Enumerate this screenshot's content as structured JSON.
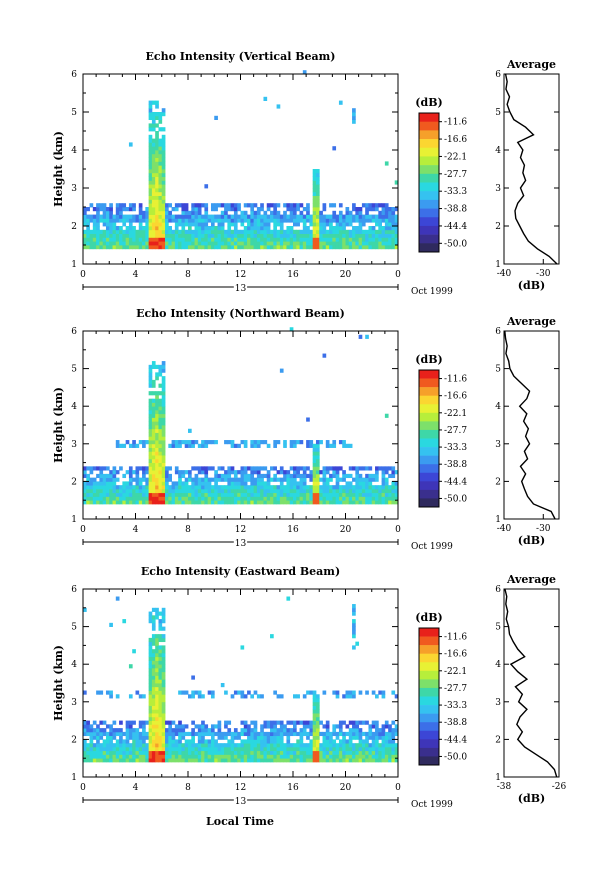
{
  "page": {
    "date_label": "Oct 1999",
    "day_label": "13",
    "xlabel": "Local Time"
  },
  "colorbar": {
    "title": "(dB)",
    "labels": [
      "-11.6",
      "-16.6",
      "-22.1",
      "-27.7",
      "-33.3",
      "-38.8",
      "-44.4",
      "-50.0"
    ],
    "colors": [
      "#e8211b",
      "#f05a1f",
      "#f6a02a",
      "#fbd631",
      "#e8f134",
      "#b7ee3b",
      "#7de06a",
      "#3ed7a8",
      "#2ad8e0",
      "#35c2f0",
      "#3b9bf0",
      "#3c6fe8",
      "#3c46d6",
      "#3e35b8",
      "#3a2f8d",
      "#2f2a5e"
    ]
  },
  "chart_data": [
    {
      "type": "heatmap",
      "title": "Echo Intensity (Vertical Beam)",
      "ylabel": "Height (km)",
      "xlim": [
        0,
        24
      ],
      "ylim": [
        1,
        6
      ],
      "xticks": [
        "0",
        "4",
        "8",
        "12",
        "16",
        "20",
        "0"
      ],
      "yticks": [
        "1",
        "2",
        "3",
        "4",
        "5",
        "6"
      ],
      "color_range_db": [
        -50.0,
        -11.6
      ],
      "features": [
        {
          "name": "boundary-layer echoes",
          "time_range": [
            0,
            24
          ],
          "height_range": [
            1.35,
            2.6
          ]
        },
        {
          "name": "convective column",
          "time_range": [
            4.8,
            6.2
          ],
          "height_range": [
            1.35,
            5.2
          ],
          "peak_db": -11.6
        },
        {
          "name": "convective cell",
          "time_range": [
            17.4,
            17.8
          ],
          "height_range": [
            1.35,
            3.5
          ]
        },
        {
          "name": "upper echoes",
          "time_range": [
            20.3,
            20.6
          ],
          "height_range": [
            4.6,
            5.1
          ]
        }
      ],
      "average_profile": {
        "title": "Average",
        "xlabel": "(dB)",
        "xlim": [
          -40,
          -26
        ],
        "xticks": [
          "-40",
          "-30"
        ],
        "ylim": [
          1,
          6
        ],
        "yticks": [
          "1",
          "2",
          "3",
          "4",
          "5",
          "6"
        ],
        "height_km": [
          1.0,
          1.2,
          1.4,
          1.6,
          1.8,
          2.0,
          2.2,
          2.4,
          2.6,
          2.8,
          3.0,
          3.2,
          3.4,
          3.6,
          3.8,
          4.0,
          4.2,
          4.4,
          4.6,
          4.8,
          5.0,
          5.2,
          5.4,
          5.6,
          5.8,
          6.0
        ],
        "db": [
          -26.5,
          -28.5,
          -31.5,
          -33.8,
          -35.0,
          -36.0,
          -37.0,
          -37.2,
          -36.5,
          -35.0,
          -35.8,
          -34.5,
          -35.2,
          -34.8,
          -35.8,
          -35.2,
          -36.5,
          -32.5,
          -34.5,
          -37.5,
          -38.5,
          -39.2,
          -38.6,
          -39.5,
          -39.2,
          -39.6
        ]
      }
    },
    {
      "type": "heatmap",
      "title": "Echo Intensity (Northward Beam)",
      "ylabel": "Height (km)",
      "xlim": [
        0,
        24
      ],
      "ylim": [
        1,
        6
      ],
      "xticks": [
        "0",
        "4",
        "8",
        "12",
        "16",
        "20",
        "0"
      ],
      "yticks": [
        "1",
        "2",
        "3",
        "4",
        "5",
        "6"
      ],
      "color_range_db": [
        -50.0,
        -11.6
      ],
      "features": [
        {
          "name": "boundary-layer echoes",
          "time_range": [
            0,
            24
          ],
          "height_range": [
            1.35,
            2.4
          ]
        },
        {
          "name": "echo layer",
          "time_range": [
            2.5,
            20.5
          ],
          "height_range": [
            2.9,
            3.05
          ]
        },
        {
          "name": "convective column",
          "time_range": [
            4.8,
            6.2
          ],
          "height_range": [
            1.35,
            5.1
          ],
          "peak_db": -11.6
        },
        {
          "name": "convective cell",
          "time_range": [
            17.4,
            17.8
          ],
          "height_range": [
            1.35,
            3.0
          ]
        }
      ],
      "average_profile": {
        "title": "Average",
        "xlabel": "(dB)",
        "xlim": [
          -40,
          -26
        ],
        "xticks": [
          "-40",
          "-30"
        ],
        "ylim": [
          1,
          6
        ],
        "yticks": [
          "1",
          "2",
          "3",
          "4",
          "5",
          "6"
        ],
        "height_km": [
          1.0,
          1.2,
          1.4,
          1.6,
          1.8,
          2.0,
          2.2,
          2.4,
          2.6,
          2.8,
          3.0,
          3.2,
          3.4,
          3.6,
          3.8,
          4.0,
          4.2,
          4.4,
          4.6,
          4.8,
          5.0,
          5.2,
          5.4,
          5.6,
          5.8,
          6.0
        ],
        "db": [
          -27.0,
          -28.0,
          -32.5,
          -34.0,
          -34.8,
          -35.5,
          -34.5,
          -35.8,
          -34.0,
          -34.8,
          -33.5,
          -34.5,
          -33.8,
          -35.0,
          -34.2,
          -36.0,
          -34.2,
          -33.5,
          -35.5,
          -37.5,
          -38.5,
          -38.8,
          -39.5,
          -39.2,
          -39.6,
          -39.8
        ]
      }
    },
    {
      "type": "heatmap",
      "title": "Echo Intensity (Eastward Beam)",
      "ylabel": "Height (km)",
      "xlim": [
        0,
        24
      ],
      "ylim": [
        1,
        6
      ],
      "xticks": [
        "0",
        "4",
        "8",
        "12",
        "16",
        "20",
        "0"
      ],
      "yticks": [
        "1",
        "2",
        "3",
        "4",
        "5",
        "6"
      ],
      "color_range_db": [
        -50.0,
        -11.6
      ],
      "features": [
        {
          "name": "boundary-layer echoes",
          "time_range": [
            0,
            24
          ],
          "height_range": [
            1.35,
            2.5
          ]
        },
        {
          "name": "scattered echoes",
          "time_range": [
            0,
            24
          ],
          "height_range": [
            3.1,
            3.3
          ]
        },
        {
          "name": "convective column",
          "time_range": [
            4.8,
            6.2
          ],
          "height_range": [
            1.35,
            5.4
          ],
          "peak_db": -11.6
        },
        {
          "name": "convective cell",
          "time_range": [
            17.4,
            17.8
          ],
          "height_range": [
            1.35,
            3.2
          ]
        },
        {
          "name": "upper echoes",
          "time_range": [
            20.4,
            20.7
          ],
          "height_range": [
            4.4,
            5.5
          ]
        }
      ],
      "average_profile": {
        "title": "Average",
        "xlabel": "(dB)",
        "xlim": [
          -38,
          -26
        ],
        "xticks": [
          "-38",
          "-26"
        ],
        "ylim": [
          1,
          6
        ],
        "yticks": [
          "1",
          "2",
          "3",
          "4",
          "5",
          "6"
        ],
        "height_km": [
          1.0,
          1.2,
          1.4,
          1.6,
          1.8,
          2.0,
          2.2,
          2.4,
          2.6,
          2.8,
          3.0,
          3.2,
          3.4,
          3.6,
          3.8,
          4.0,
          4.2,
          4.4,
          4.6,
          4.8,
          5.0,
          5.2,
          5.4,
          5.6,
          5.8,
          6.0
        ],
        "db": [
          -26.5,
          -27.0,
          -28.5,
          -31.0,
          -33.5,
          -35.0,
          -34.0,
          -35.2,
          -34.5,
          -33.0,
          -34.8,
          -34.0,
          -35.5,
          -33.0,
          -35.0,
          -36.5,
          -33.5,
          -35.0,
          -36.0,
          -36.8,
          -37.0,
          -37.5,
          -37.2,
          -37.6,
          -37.4,
          -37.8
        ]
      }
    }
  ]
}
